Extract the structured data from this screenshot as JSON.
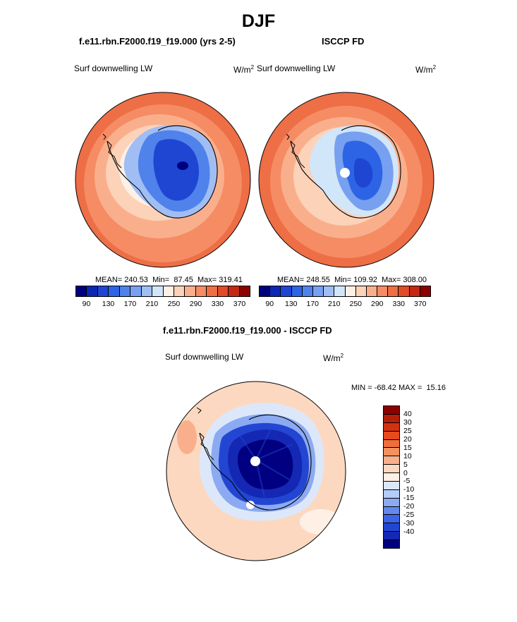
{
  "title": "DJF",
  "panels": {
    "model": {
      "title": "f.e11.rbn.F2000.f19_f19.000 (yrs 2-5)",
      "variable": "Surf downwelling LW",
      "units_base": "W/m",
      "units_exp": "2",
      "stats": {
        "mean_label": "MEAN=",
        "mean": "240.53",
        "min_label": "Min=",
        "min": "87.45",
        "max_label": "Max=",
        "max": "319.41"
      }
    },
    "obs": {
      "title": "ISCCP FD",
      "variable": "Surf downwelling LW",
      "units_base": "W/m",
      "units_exp": "2",
      "stats": {
        "mean_label": "MEAN=",
        "mean": "248.55",
        "min_label": "Min=",
        "min": "109.92",
        "max_label": "Max=",
        "max": "308.00"
      }
    },
    "diff": {
      "title": "f.e11.rbn.F2000.f19_f19.000 - ISCCP FD",
      "variable": "Surf downwelling LW",
      "units_base": "W/m",
      "units_exp": "2",
      "minmax": {
        "min_label": "MIN =",
        "min": "-68.42",
        "max_label": "MAX =",
        "max": "15.16"
      }
    }
  },
  "colorbars": {
    "abs": {
      "colors": [
        "#00007f",
        "#0a28b4",
        "#1e46d2",
        "#2d64e6",
        "#5082ec",
        "#78a0f0",
        "#a0bef4",
        "#d2e6fa",
        "#fff0e6",
        "#fcd2b9",
        "#faaf8c",
        "#f58c64",
        "#ee6e46",
        "#e04b28",
        "#c42814",
        "#8c0000"
      ],
      "ticks": [
        "90",
        "130",
        "170",
        "210",
        "250",
        "290",
        "330",
        "370"
      ]
    },
    "diff": {
      "colors": [
        "#8c0000",
        "#b41e0a",
        "#d23214",
        "#e64b1e",
        "#f06e3c",
        "#f5915f",
        "#faaf8c",
        "#fcd8c0",
        "#fff0e6",
        "#dce8fa",
        "#b4ccf8",
        "#8caaf2",
        "#6488ec",
        "#3c64e6",
        "#2346d2",
        "#1428b4",
        "#000080"
      ],
      "ticks": [
        "40",
        "30",
        "25",
        "20",
        "15",
        "10",
        "5",
        "0",
        "-5",
        "-10",
        "-15",
        "-20",
        "-25",
        "-30",
        "-40"
      ]
    }
  }
}
